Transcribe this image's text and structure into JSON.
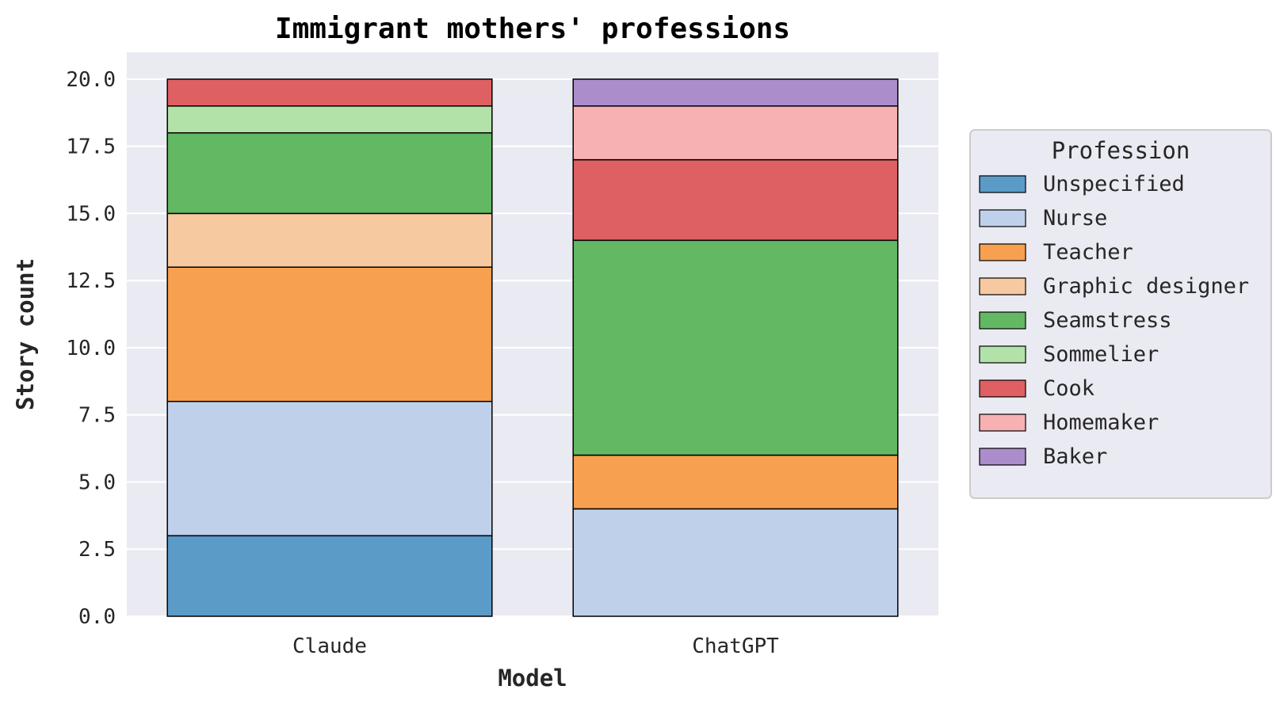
{
  "chart_data": {
    "type": "bar",
    "stacked": true,
    "title": "Immigrant mothers' professions",
    "xlabel": "Model",
    "ylabel": "Story count",
    "categories": [
      "Claude",
      "ChatGPT"
    ],
    "ylim": [
      0,
      21
    ],
    "yticks": [
      "0.0",
      "2.5",
      "5.0",
      "7.5",
      "10.0",
      "12.5",
      "15.0",
      "17.5",
      "20.0"
    ],
    "grid": true,
    "legend": {
      "title": "Profession",
      "placement": "right"
    },
    "series": [
      {
        "name": "Unspecified",
        "color": "#5b9bc8",
        "values": [
          3,
          0
        ]
      },
      {
        "name": "Nurse",
        "color": "#bfd0ea",
        "values": [
          5,
          4
        ]
      },
      {
        "name": "Teacher",
        "color": "#f7a050",
        "values": [
          5,
          2
        ]
      },
      {
        "name": "Graphic designer",
        "color": "#f7c9a0",
        "values": [
          2,
          0
        ]
      },
      {
        "name": "Seamstress",
        "color": "#63b863",
        "values": [
          3,
          8
        ]
      },
      {
        "name": "Sommelier",
        "color": "#b3e2a8",
        "values": [
          1,
          0
        ]
      },
      {
        "name": "Cook",
        "color": "#de6063",
        "values": [
          1,
          3
        ]
      },
      {
        "name": "Homemaker",
        "color": "#f8b1b3",
        "values": [
          0,
          2
        ]
      },
      {
        "name": "Baker",
        "color": "#ab8dcc",
        "values": [
          0,
          1
        ]
      }
    ]
  }
}
